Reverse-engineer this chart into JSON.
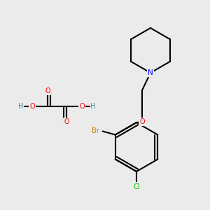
{
  "bg_color": "#ebebeb",
  "bond_color": "#000000",
  "atom_colors": {
    "O": "#ff0000",
    "N": "#0000ff",
    "Br": "#cc7700",
    "Cl": "#00bb00",
    "H": "#4a8a8a",
    "C": "#000000"
  },
  "bond_width": 1.5,
  "fig_size": [
    3.0,
    3.0
  ],
  "dpi": 100
}
